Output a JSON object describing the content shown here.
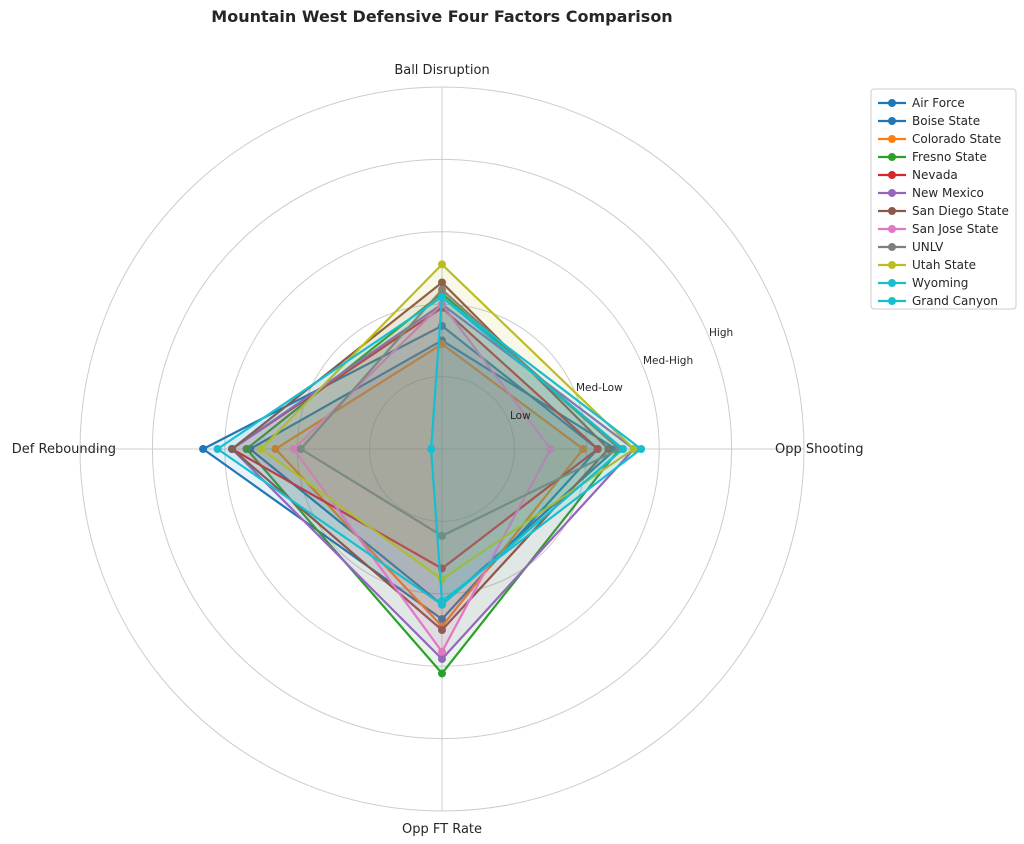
{
  "chart_data": {
    "type": "radar",
    "title": "Mountain West Defensive Four Factors Comparison",
    "axes": [
      "Ball Disruption",
      "Opp Shooting",
      "Opp FT Rate",
      "Def Rebounding"
    ],
    "ring_labels": [
      "Low",
      "Med-Low",
      "Med-High",
      "High"
    ],
    "rlim": [
      0,
      5
    ],
    "grid": true,
    "legend_position": "top-right",
    "series": [
      {
        "name": "Air Force",
        "color": "#1f77b4",
        "values": [
          1.5,
          2.4,
          2.15,
          2.65
        ]
      },
      {
        "name": "Boise State",
        "color": "#1f77b4",
        "values": [
          1.7,
          2.15,
          2.35,
          3.3
        ]
      },
      {
        "name": "Colorado State",
        "color": "#ff7f0e",
        "values": [
          1.45,
          1.95,
          2.45,
          2.3
        ]
      },
      {
        "name": "Fresno State",
        "color": "#2ca02c",
        "values": [
          2.15,
          2.45,
          3.1,
          2.7
        ]
      },
      {
        "name": "Nevada",
        "color": "#d62728",
        "values": [
          1.95,
          2.15,
          1.65,
          2.9
        ]
      },
      {
        "name": "New Mexico",
        "color": "#9467bd",
        "values": [
          2.0,
          2.65,
          2.9,
          2.9
        ]
      },
      {
        "name": "San Diego State",
        "color": "#8c564b",
        "values": [
          2.3,
          2.3,
          2.5,
          2.9
        ]
      },
      {
        "name": "San Jose State",
        "color": "#e377c2",
        "values": [
          2.0,
          1.5,
          2.8,
          2.05
        ]
      },
      {
        "name": "UNLV",
        "color": "#7f7f7f",
        "values": [
          2.2,
          2.45,
          1.2,
          1.95
        ]
      },
      {
        "name": "Utah State",
        "color": "#bcbd22",
        "values": [
          2.55,
          2.65,
          1.8,
          2.5
        ]
      },
      {
        "name": "Wyoming",
        "color": "#17becf",
        "values": [
          2.1,
          2.5,
          2.15,
          3.1
        ]
      },
      {
        "name": "Grand Canyon",
        "color": "#17becf",
        "values": [
          2.1,
          2.75,
          2.1,
          0.15
        ]
      }
    ]
  }
}
